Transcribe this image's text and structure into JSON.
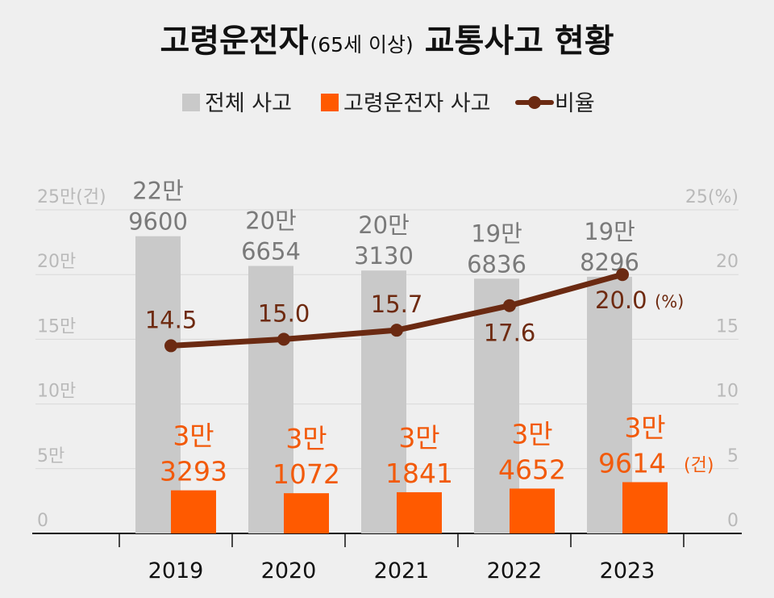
{
  "title": {
    "main": "고령운전자",
    "sub": "(65세 이상)",
    "tail": "교통사고 현황"
  },
  "chart_data": {
    "type": "bar",
    "categories": [
      "2019",
      "2020",
      "2021",
      "2022",
      "2023"
    ],
    "series": [
      {
        "name": "전체 사고",
        "unit": "건",
        "color": "#c9c9c9",
        "values": [
          229600,
          206654,
          203130,
          196836,
          198296
        ],
        "labels": [
          [
            "22만",
            "9600"
          ],
          [
            "20만",
            "6654"
          ],
          [
            "20만",
            "3130"
          ],
          [
            "19만",
            "6836"
          ],
          [
            "19만",
            "8296"
          ]
        ]
      },
      {
        "name": "고령운전자 사고",
        "unit": "건",
        "color": "#ff5a00",
        "values": [
          33293,
          31072,
          31841,
          34652,
          39614
        ],
        "labels": [
          [
            "3만",
            "3293"
          ],
          [
            "3만",
            "1072"
          ],
          [
            "3만",
            "1841"
          ],
          [
            "3만",
            "4652"
          ],
          [
            "3만",
            "9614"
          ]
        ],
        "last_label_unit": "(건)"
      },
      {
        "name": "비율",
        "type": "line",
        "axis": "right",
        "unit": "%",
        "color": "#6b2a12",
        "values": [
          14.5,
          15.0,
          15.7,
          17.6,
          20.0
        ],
        "labels": [
          "14.5",
          "15.0",
          "15.7",
          "17.6",
          "20.0"
        ],
        "last_label_unit": "(%)"
      }
    ],
    "y_left": {
      "range": [
        0,
        250000
      ],
      "ticks": [
        0,
        50000,
        100000,
        150000,
        200000,
        250000
      ],
      "tick_labels": [
        "0",
        "5만",
        "10만",
        "15만",
        "20만",
        "25만(건)"
      ]
    },
    "y_right": {
      "range": [
        0,
        25
      ],
      "ticks": [
        0,
        5,
        10,
        15,
        20,
        25
      ],
      "tick_labels": [
        "0",
        "5",
        "10",
        "15",
        "20",
        "25(%)"
      ]
    },
    "grid": true,
    "legend_position": "top"
  }
}
